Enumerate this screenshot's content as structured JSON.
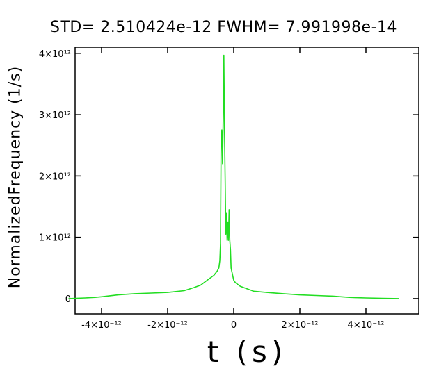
{
  "chart_data": {
    "type": "line",
    "title": "STD= 2.510424e-12  FWHM= 7.991998e-14",
    "xlabel": "t (s)",
    "ylabel": "NormalizedFrequency (1/s)",
    "xlim": [
      -4.8e-12,
      5.6e-12
    ],
    "ylim": [
      -250000000000.0,
      4100000000000.0
    ],
    "x_ticks": [
      -4e-12,
      -2e-12,
      0,
      2e-12,
      4e-12
    ],
    "x_tick_labels": [
      "-4×10⁻¹²",
      "-2×10⁻¹²",
      "0",
      "2×10⁻¹²",
      "4×10⁻¹²"
    ],
    "y_ticks": [
      0,
      1000000000000.0,
      2000000000000.0,
      3000000000000.0,
      4000000000000.0
    ],
    "y_tick_labels": [
      "0",
      "1×10¹²",
      "2×10¹²",
      "3×10¹²",
      "4×10¹²"
    ],
    "grid": false,
    "color": "#22dd22",
    "series": [
      {
        "x": [
          -5e-12,
          -4.5e-12,
          -4.2e-12,
          -4e-12,
          -3.5e-12,
          -3e-12,
          -2.5e-12,
          -2e-12,
          -1.5e-12,
          -1.2e-12,
          -1e-12,
          -8e-13,
          -6e-13,
          -5e-13,
          -4.5e-13,
          -4.2e-13,
          -4e-13,
          -3.8e-13,
          -3.6e-13,
          -3.4e-13,
          -3.2e-13,
          -3e-13,
          -2.8e-13,
          -2.6e-13,
          -2.4e-13,
          -2.2e-13,
          -2e-13,
          -1.8e-13,
          -1.6e-13,
          -1.4e-13,
          -1.2e-13,
          -1e-13,
          -8e-14,
          -6e-14,
          -4e-14,
          -2e-14,
          0.0,
          5e-14,
          1e-13,
          2e-13,
          4e-13,
          6e-13,
          8e-13,
          1e-12,
          1.5e-12,
          2e-12,
          2.5e-12,
          3e-12,
          3.5e-12,
          4e-12,
          4.5e-12,
          5e-12
        ],
        "y": [
          0.0,
          10000000000.0,
          20000000000.0,
          30000000000.0,
          60000000000.0,
          80000000000.0,
          90000000000.0,
          100000000000.0,
          130000000000.0,
          180000000000.0,
          220000000000.0,
          300000000000.0,
          380000000000.0,
          450000000000.0,
          500000000000.0,
          620000000000.0,
          900000000000.0,
          2700000000000.0,
          2750000000000.0,
          2200000000000.0,
          2900000000000.0,
          3970000000000.0,
          2800000000000.0,
          2000000000000.0,
          1050000000000.0,
          1400000000000.0,
          950000000000.0,
          1250000000000.0,
          950000000000.0,
          1450000000000.0,
          950000000000.0,
          800000000000.0,
          500000000000.0,
          450000000000.0,
          400000000000.0,
          350000000000.0,
          300000000000.0,
          260000000000.0,
          240000000000.0,
          200000000000.0,
          160000000000.0,
          120000000000.0,
          110000000000.0,
          100000000000.0,
          80000000000.0,
          60000000000.0,
          50000000000.0,
          40000000000.0,
          20000000000.0,
          10000000000.0,
          5000000000.0,
          0.0
        ]
      }
    ]
  }
}
